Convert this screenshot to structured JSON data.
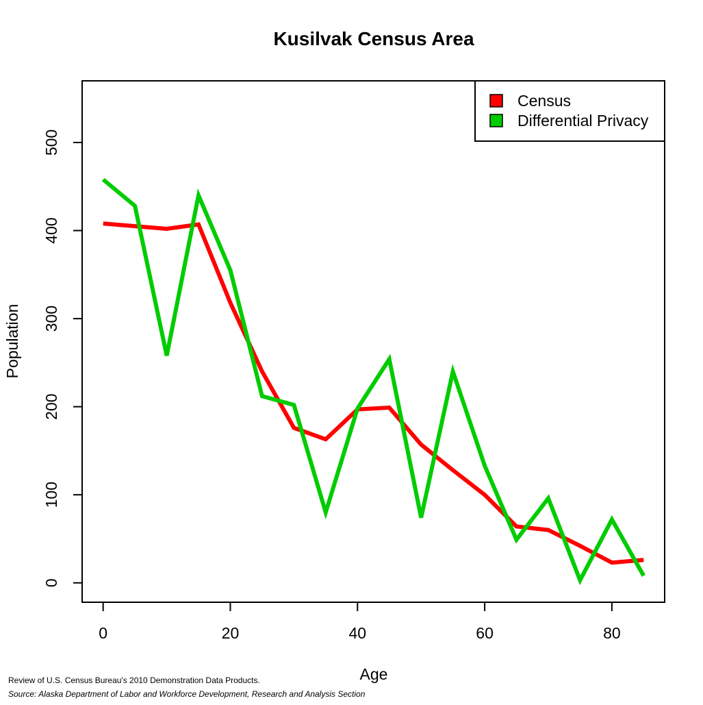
{
  "chart_data": {
    "type": "line",
    "title": "Kusilvak Census Area",
    "xlabel": "Age",
    "ylabel": "Population",
    "xlim": [
      -3.3,
      88.3
    ],
    "ylim": [
      -22,
      570
    ],
    "xticks": [
      0,
      20,
      40,
      60,
      80
    ],
    "yticks": [
      0,
      100,
      200,
      300,
      400,
      500
    ],
    "x": [
      0,
      5,
      10,
      15,
      20,
      25,
      30,
      35,
      40,
      45,
      50,
      55,
      60,
      65,
      70,
      75,
      80,
      85
    ],
    "series": [
      {
        "name": "Census",
        "color": "#ff0000",
        "values": [
          408,
          405,
          402,
          407,
          318,
          240,
          176,
          163,
          197,
          199,
          157,
          128,
          100,
          64,
          60,
          42,
          23,
          26
        ]
      },
      {
        "name": "Differential Privacy",
        "color": "#00cc00",
        "values": [
          458,
          428,
          258,
          440,
          355,
          212,
          202,
          80,
          198,
          254,
          74,
          240,
          133,
          49,
          96,
          3,
          72,
          8
        ]
      }
    ],
    "legend": {
      "position": "top-right"
    },
    "grid": false
  },
  "footnotes": {
    "review": "Review of U.S. Census Bureau's 2010 Demonstration Data Products.",
    "source": "Source: Alaska Department of Labor and Workforce Development, Research and Analysis Section"
  }
}
